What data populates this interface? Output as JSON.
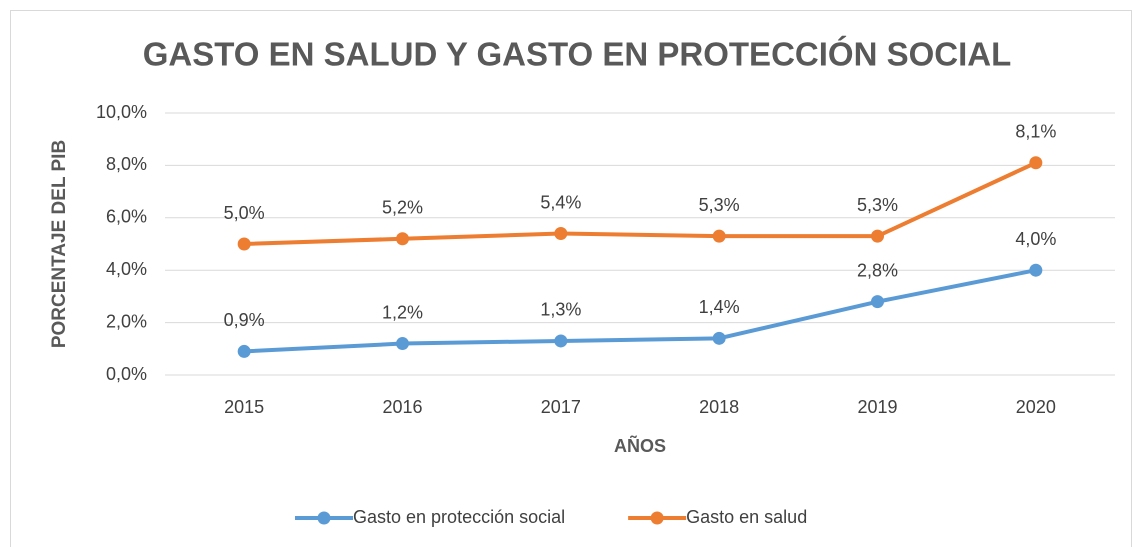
{
  "chart_data": {
    "type": "line",
    "title": "GASTO EN SALUD Y GASTO EN PROTECCIÓN SOCIAL",
    "x_label": "AÑOS",
    "y_label": "PORCENTAJE DEL PIB",
    "categories": [
      "2015",
      "2016",
      "2017",
      "2018",
      "2019",
      "2020"
    ],
    "series": [
      {
        "name": "Gasto en protección social",
        "color": "#5b9bd5",
        "values": [
          0.9,
          1.2,
          1.3,
          1.4,
          2.8,
          4.0
        ],
        "value_labels": [
          "0,9%",
          "1,2%",
          "1,3%",
          "1,4%",
          "2,8%",
          "4,0%"
        ]
      },
      {
        "name": "Gasto en salud",
        "color": "#ed7d31",
        "values": [
          5.0,
          5.2,
          5.4,
          5.3,
          5.3,
          8.1
        ],
        "value_labels": [
          "5,0%",
          "5,2%",
          "5,4%",
          "5,3%",
          "5,3%",
          "8,1%"
        ]
      }
    ],
    "ylim": [
      0,
      10
    ],
    "yticks": [
      {
        "value": 0,
        "label": "0,0%"
      },
      {
        "value": 2,
        "label": "2,0%"
      },
      {
        "value": 4,
        "label": "4,0%"
      },
      {
        "value": 6,
        "label": "6,0%"
      },
      {
        "value": 8,
        "label": "8,0%"
      },
      {
        "value": 10,
        "label": "10,0%"
      }
    ],
    "grid": true,
    "legend": "bottom"
  }
}
